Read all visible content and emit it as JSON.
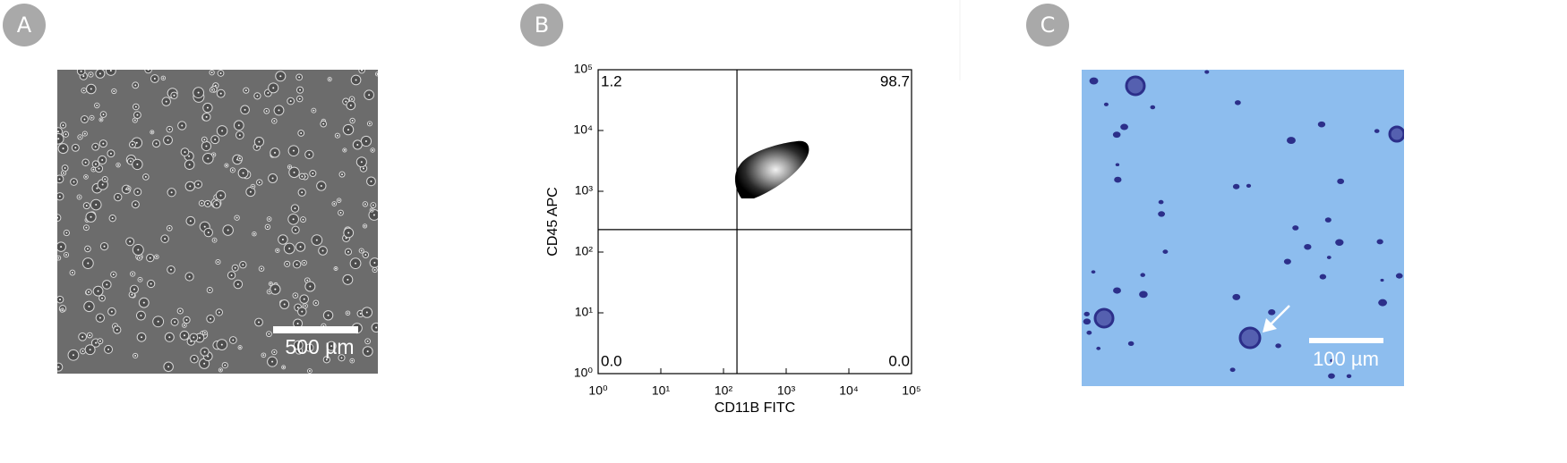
{
  "panels": [
    {
      "label": "A",
      "scale_bar": "500 µm"
    },
    {
      "label": "B"
    },
    {
      "label": "C",
      "scale_bar": "100 µm"
    }
  ],
  "chart_data": {
    "type": "density",
    "x_label": "CD11B FITC",
    "y_label": "CD45 APC",
    "xlim": [
      1,
      100000
    ],
    "ylim": [
      1,
      100000
    ],
    "log_scale": true,
    "xticks": [
      {
        "value": 1,
        "label": "10⁰"
      },
      {
        "value": 10,
        "label": "10¹"
      },
      {
        "value": 100,
        "label": "10²"
      },
      {
        "value": 1000,
        "label": "10³"
      },
      {
        "value": 10000,
        "label": "10⁴"
      },
      {
        "value": 100000,
        "label": "10⁵"
      }
    ],
    "yticks": [
      {
        "value": 1,
        "label": "10⁰"
      },
      {
        "value": 10,
        "label": "10¹"
      },
      {
        "value": 100,
        "label": "10²"
      },
      {
        "value": 1000,
        "label": "10³"
      },
      {
        "value": 10000,
        "label": "10⁴"
      },
      {
        "value": 100000,
        "label": "10⁵"
      }
    ],
    "x_gate": 164,
    "y_gate": 234,
    "quadrants": {
      "upper_left": "1.2",
      "upper_right": "98.7",
      "lower_left": "0.0",
      "lower_right": "0.0"
    }
  }
}
